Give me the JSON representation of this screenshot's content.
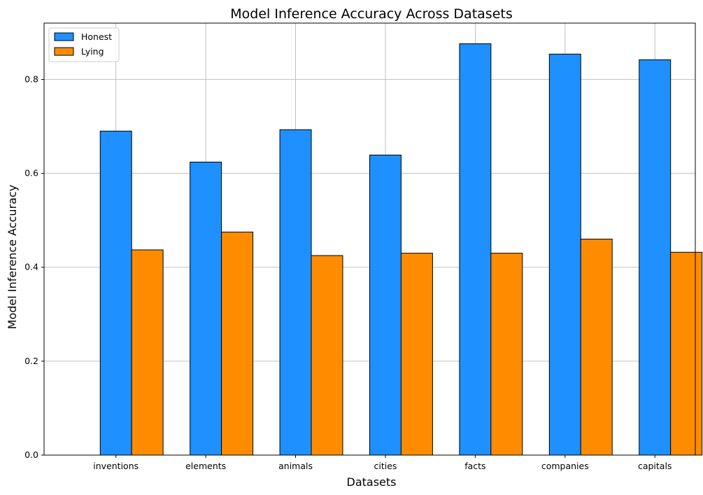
{
  "chart_data": {
    "type": "bar",
    "title": "Model Inference Accuracy Across Datasets",
    "xlabel": "Datasets",
    "ylabel": "Model Inference Accuracy",
    "categories": [
      "inventions",
      "elements",
      "animals",
      "cities",
      "facts",
      "companies",
      "capitals"
    ],
    "series": [
      {
        "name": "Honest",
        "color": "#1e90ff",
        "values": [
          0.69,
          0.624,
          0.693,
          0.639,
          0.876,
          0.854,
          0.842
        ]
      },
      {
        "name": "Lying",
        "color": "#ff8c00",
        "values": [
          0.437,
          0.475,
          0.425,
          0.43,
          0.43,
          0.46,
          0.432
        ]
      }
    ],
    "ylim": [
      0,
      0.92
    ],
    "yticks": [
      0.0,
      0.2,
      0.4,
      0.6,
      0.8
    ],
    "ytick_labels": [
      "0.0",
      "0.2",
      "0.4",
      "0.6",
      "0.8"
    ],
    "grid": true,
    "legend_position": "top-left"
  }
}
